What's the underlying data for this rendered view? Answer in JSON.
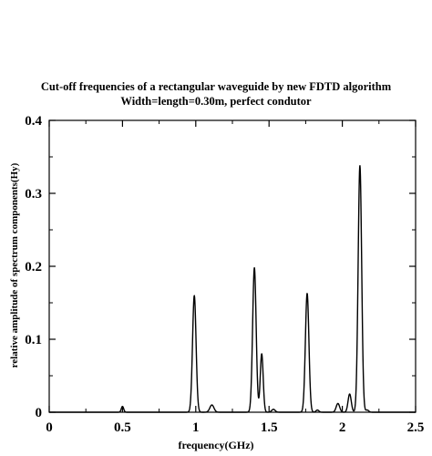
{
  "chart_data": {
    "type": "line",
    "title": "Cut-off frequencies of a rectangular waveguide by new FDTD algorithm",
    "subtitle": "Width=length=0.30m, perfect condutor",
    "xlabel": "frequency(GHz)",
    "ylabel": "relative amplitude of spectrum components(Hy)",
    "xlim": [
      0,
      2.5
    ],
    "ylim": [
      0,
      0.4
    ],
    "xticks": [
      0,
      0.5,
      1,
      1.5,
      2,
      2.5
    ],
    "xtick_labels": [
      "0",
      "0.5",
      "1",
      "1.5",
      "2",
      "2.5"
    ],
    "yticks": [
      0,
      0.1,
      0.2,
      0.3,
      0.4
    ],
    "ytick_labels": [
      "0",
      "0.1",
      "0.2",
      "0.3",
      "0.4"
    ],
    "grid": false,
    "series": [
      {
        "peaks": [
          {
            "x": 0.5,
            "y": 0.008,
            "w": 0.008
          },
          {
            "x": 0.99,
            "y": 0.16,
            "w": 0.012
          },
          {
            "x": 1.11,
            "y": 0.01,
            "w": 0.014
          },
          {
            "x": 1.4,
            "y": 0.198,
            "w": 0.012
          },
          {
            "x": 1.45,
            "y": 0.08,
            "w": 0.01
          },
          {
            "x": 1.53,
            "y": 0.004,
            "w": 0.012
          },
          {
            "x": 1.76,
            "y": 0.163,
            "w": 0.012
          },
          {
            "x": 1.83,
            "y": 0.003,
            "w": 0.01
          },
          {
            "x": 1.97,
            "y": 0.012,
            "w": 0.012
          },
          {
            "x": 2.05,
            "y": 0.025,
            "w": 0.011
          },
          {
            "x": 2.12,
            "y": 0.338,
            "w": 0.012
          },
          {
            "x": 2.17,
            "y": 0.003,
            "w": 0.01
          }
        ]
      }
    ]
  }
}
